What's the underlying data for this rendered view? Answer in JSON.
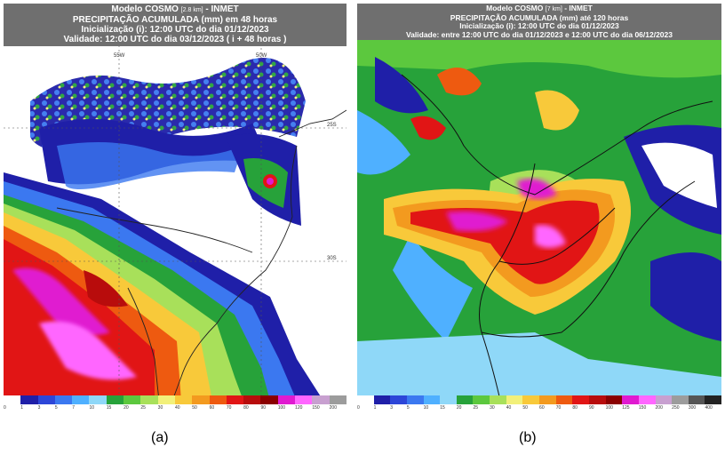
{
  "panel_a": {
    "title_line1": "Modelo COSMO",
    "title_res": "[2.8 km]",
    "title_org": " - INMET",
    "title_line2": "PRECIPITAÇÃO ACUMULADA (mm) em 48 horas",
    "title_line3": "Inicialização (i): 12:00 UTC do dia 01/12/2023",
    "title_line4": "Validade: 12:00 UTC do dia 03/12/2023 ( i + 48 horas )",
    "lat_labels": [
      "25S",
      "30S"
    ],
    "lon_labels": [
      "55W",
      "50W"
    ],
    "scale_ticks": [
      "0",
      "1",
      "3",
      "5",
      "7",
      "10",
      "15",
      "20",
      "25",
      "30",
      "40",
      "50",
      "60",
      "70",
      "80",
      "90",
      "100",
      "120",
      "150",
      "200"
    ],
    "caption": "(a)"
  },
  "panel_b": {
    "title_line1": "Modelo COSMO",
    "title_res": "[7 km]",
    "title_org": " - INMET",
    "title_line2": "PRECIPITAÇÃO ACUMULADA (mm) até 120 horas",
    "title_line3": "Inicialização (i): 12:00 UTC do dia 01/12/2023",
    "title_line4": "Validade: entre 12:00 UTC do dia 01/12/2023 e 12:00 UTC do dia 06/12/2023",
    "scale_ticks": [
      "0",
      "1",
      "3",
      "5",
      "10",
      "15",
      "20",
      "25",
      "30",
      "40",
      "50",
      "60",
      "70",
      "80",
      "90",
      "100",
      "125",
      "150",
      "200",
      "250",
      "300",
      "400"
    ],
    "caption": "(b)"
  },
  "colors": {
    "header_bg": "#6f6f6f",
    "scale": [
      "#ffffff",
      "#1f1fa8",
      "#2d46d8",
      "#3b78f0",
      "#4fb0ff",
      "#8fd8f8",
      "#27a23a",
      "#5cc83e",
      "#a8e05a",
      "#f2f07a",
      "#f8c93a",
      "#f39a1f",
      "#ee5a10",
      "#e11515",
      "#b80c0c",
      "#8a0000",
      "#e01ad0",
      "#ff66ff",
      "#c8a0d0",
      "#9c9c9c",
      "#555555",
      "#222222"
    ]
  }
}
